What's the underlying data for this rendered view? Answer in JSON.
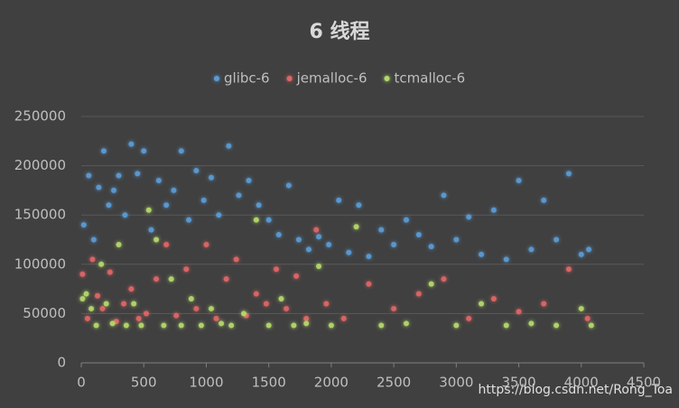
{
  "chart_data": {
    "type": "scatter",
    "title": "6 线程",
    "annotation": "https://blog.csdn.net/Rong_Toa",
    "xlim": [
      0,
      4500
    ],
    "xticks": [
      0,
      500,
      1000,
      1500,
      2000,
      2500,
      3000,
      3500,
      4000,
      4500
    ],
    "ylim": [
      0,
      250000
    ],
    "yticks": [
      0,
      50000,
      100000,
      150000,
      200000,
      250000
    ],
    "grid": true,
    "legend": "top",
    "series": [
      {
        "name": "glibc-6",
        "color": "#5b9bd5",
        "x": [
          20,
          60,
          100,
          140,
          180,
          220,
          260,
          300,
          350,
          400,
          450,
          500,
          560,
          620,
          680,
          740,
          800,
          860,
          920,
          980,
          1040,
          1100,
          1180,
          1260,
          1340,
          1420,
          1500,
          1580,
          1660,
          1740,
          1820,
          1900,
          1980,
          2060,
          2140,
          2220,
          2300,
          2400,
          2500,
          2600,
          2700,
          2800,
          2900,
          3000,
          3100,
          3200,
          3300,
          3400,
          3500,
          3600,
          3700,
          3800,
          3900,
          4000,
          4060
        ],
        "values": [
          140000,
          190000,
          125000,
          178000,
          215000,
          160000,
          175000,
          190000,
          150000,
          222000,
          192000,
          215000,
          135000,
          185000,
          160000,
          175000,
          215000,
          145000,
          195000,
          165000,
          188000,
          150000,
          220000,
          170000,
          185000,
          160000,
          145000,
          130000,
          180000,
          125000,
          115000,
          128000,
          120000,
          165000,
          112000,
          160000,
          108000,
          135000,
          120000,
          145000,
          130000,
          118000,
          170000,
          125000,
          148000,
          110000,
          155000,
          105000,
          185000,
          115000,
          165000,
          125000,
          192000,
          110000,
          115000
        ]
      },
      {
        "name": "jemalloc-6",
        "color": "#e06666",
        "x": [
          10,
          50,
          90,
          130,
          170,
          230,
          280,
          340,
          400,
          460,
          520,
          600,
          680,
          760,
          840,
          920,
          1000,
          1080,
          1160,
          1240,
          1320,
          1400,
          1480,
          1560,
          1640,
          1720,
          1800,
          1880,
          1960,
          2100,
          2300,
          2500,
          2700,
          2900,
          3100,
          3300,
          3500,
          3700,
          3900,
          4050
        ],
        "values": [
          90000,
          45000,
          105000,
          68000,
          55000,
          92000,
          42000,
          60000,
          75000,
          45000,
          50000,
          85000,
          120000,
          48000,
          95000,
          55000,
          120000,
          45000,
          85000,
          105000,
          48000,
          70000,
          60000,
          95000,
          55000,
          88000,
          45000,
          135000,
          60000,
          45000,
          80000,
          55000,
          70000,
          85000,
          45000,
          65000,
          52000,
          60000,
          95000,
          45000
        ]
      },
      {
        "name": "tcmalloc-6",
        "color": "#b5d96a",
        "x": [
          10,
          40,
          80,
          120,
          160,
          200,
          250,
          300,
          360,
          420,
          480,
          540,
          600,
          660,
          720,
          800,
          880,
          960,
          1040,
          1120,
          1200,
          1300,
          1400,
          1500,
          1600,
          1700,
          1800,
          1900,
          2000,
          2200,
          2400,
          2600,
          2800,
          3000,
          3200,
          3400,
          3600,
          3800,
          4000,
          4080
        ],
        "values": [
          65000,
          70000,
          55000,
          38000,
          100000,
          60000,
          40000,
          120000,
          38000,
          60000,
          38000,
          155000,
          125000,
          38000,
          85000,
          38000,
          65000,
          38000,
          55000,
          40000,
          38000,
          50000,
          145000,
          38000,
          65000,
          38000,
          40000,
          98000,
          38000,
          138000,
          38000,
          40000,
          80000,
          38000,
          60000,
          38000,
          40000,
          38000,
          55000,
          38000
        ]
      }
    ]
  }
}
